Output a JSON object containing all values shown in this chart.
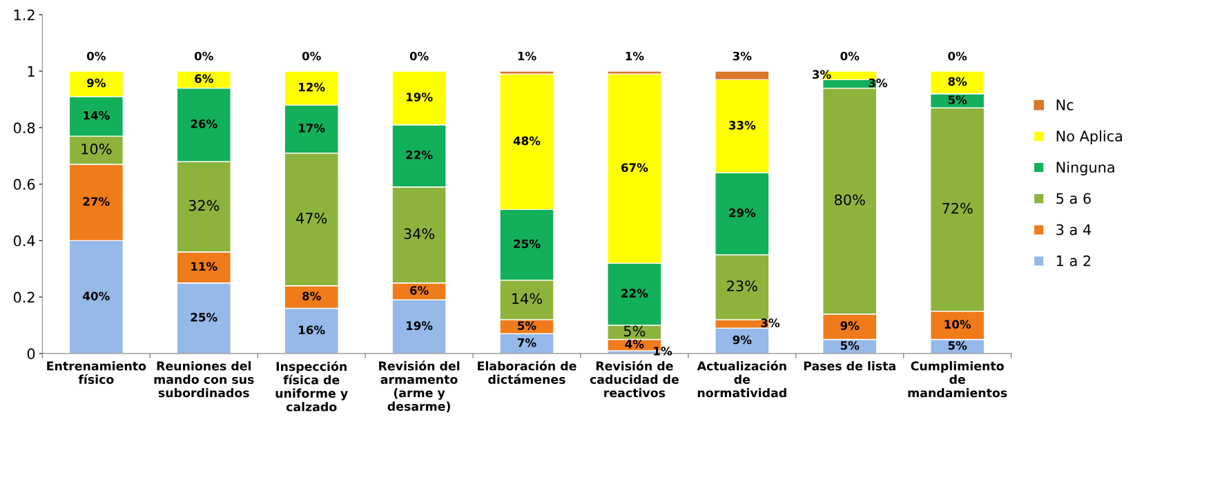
{
  "chart_data": {
    "type": "bar",
    "stacked": true,
    "categories": [
      "Entrenamiento\nfísico",
      "Reuniones del\nmando con sus\nsubordinados",
      "Inspección\nfísica de\nuniforme y\ncalzado",
      "Revisión del\narmamento\n(arme y\ndesarme)",
      "Elaboración de\ndictámenes",
      "Revisión de\ncaducidad de\nreactivos",
      "Actualización\nde\nnormatividad",
      "Pases de lista",
      "Cumplimiento\nde\nmandamientos"
    ],
    "series": [
      {
        "name": "1 a 2",
        "color": "#95b9e8",
        "values": [
          0.4,
          0.25,
          0.16,
          0.19,
          0.07,
          0.01,
          0.09,
          0.05,
          0.05
        ],
        "value_labels": [
          "40%",
          "25%",
          "16%",
          "19%",
          "7%",
          "1%",
          "9%",
          "5%",
          "5%"
        ]
      },
      {
        "name": "3 a 4",
        "color": "#f07b1a",
        "values": [
          0.27,
          0.11,
          0.08,
          0.06,
          0.05,
          0.04,
          0.03,
          0.09,
          0.1
        ],
        "value_labels": [
          "27%",
          "11%",
          "8%",
          "6%",
          "5%",
          "4%",
          "3%",
          "9%",
          "10%"
        ]
      },
      {
        "name": "5 a 6",
        "color": "#8db33d",
        "values": [
          0.1,
          0.32,
          0.47,
          0.34,
          0.14,
          0.05,
          0.23,
          0.8,
          0.72
        ],
        "value_labels": [
          "10%",
          "32%",
          "47%",
          "34%",
          "14%",
          "5%",
          "23%",
          "80%",
          "72%"
        ]
      },
      {
        "name": "Ninguna",
        "color": "#12b05a",
        "values": [
          0.14,
          0.26,
          0.17,
          0.22,
          0.25,
          0.22,
          0.29,
          0.03,
          0.05
        ],
        "value_labels": [
          "14%",
          "26%",
          "17%",
          "22%",
          "25%",
          "22%",
          "29%",
          "3%",
          "5%"
        ]
      },
      {
        "name": "No Aplica",
        "color": "#ffff00",
        "values": [
          0.09,
          0.06,
          0.12,
          0.19,
          0.48,
          0.67,
          0.33,
          0.03,
          0.08
        ],
        "value_labels": [
          "9%",
          "6%",
          "12%",
          "19%",
          "48%",
          "67%",
          "33%",
          "3%",
          "8%"
        ]
      },
      {
        "name": "Nc",
        "color": "#d9772a",
        "values": [
          0,
          0,
          0,
          0,
          0.01,
          0.01,
          0.03,
          0,
          0
        ],
        "value_labels": [
          "0%",
          "0%",
          "0%",
          "0%",
          "1%",
          "1%",
          "3%",
          "0%",
          "0%"
        ]
      }
    ],
    "ylim": [
      0,
      1.2
    ],
    "yticks": [
      0,
      0.2,
      0.4,
      0.6,
      0.8,
      1,
      1.2
    ],
    "grid": false,
    "legend": "right"
  }
}
